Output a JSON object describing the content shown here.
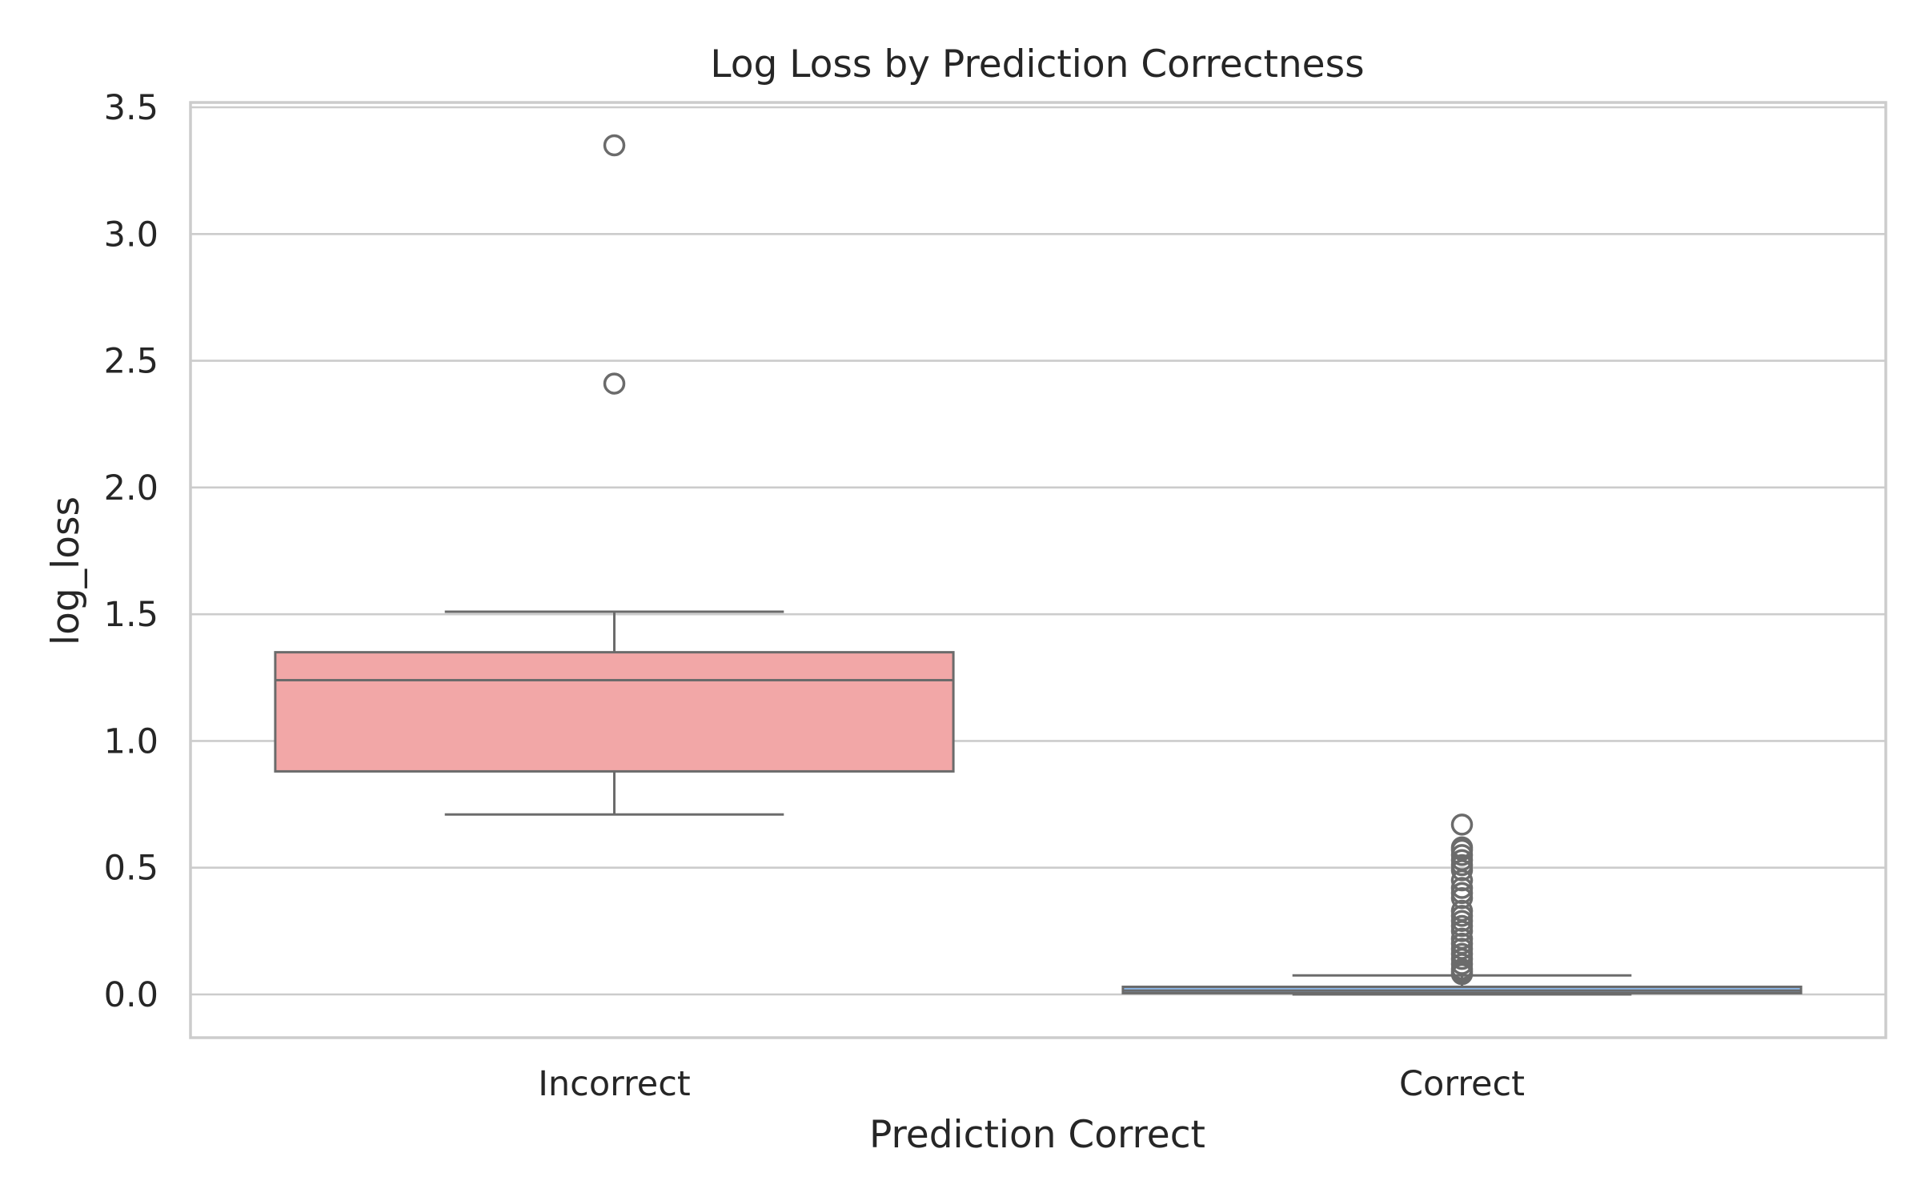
{
  "chart_data": {
    "type": "box",
    "title": "Log Loss by Prediction Correctness",
    "xlabel": "Prediction Correct",
    "ylabel": "log_loss",
    "categories": [
      "Incorrect",
      "Correct"
    ],
    "ylim": [
      -0.17,
      3.52
    ],
    "yticks": [
      0.0,
      0.5,
      1.0,
      1.5,
      2.0,
      2.5,
      3.0,
      3.5
    ],
    "ytick_labels": [
      "0.0",
      "0.5",
      "1.0",
      "1.5",
      "2.0",
      "2.5",
      "3.0",
      "3.5"
    ],
    "grid": "horizontal",
    "boxes": [
      {
        "category": "Incorrect",
        "color": "#f2a7a7",
        "whisker_low": 0.71,
        "q1": 0.88,
        "median": 1.24,
        "q3": 1.35,
        "whisker_high": 1.51,
        "fliers": [
          2.41,
          3.35
        ]
      },
      {
        "category": "Correct",
        "color": "#8db9ea",
        "whisker_low": 0.0,
        "q1": 0.005,
        "median": 0.015,
        "q3": 0.03,
        "whisker_high": 0.075,
        "fliers": [
          0.08,
          0.09,
          0.1,
          0.12,
          0.14,
          0.16,
          0.18,
          0.2,
          0.22,
          0.25,
          0.27,
          0.29,
          0.31,
          0.33,
          0.38,
          0.4,
          0.42,
          0.45,
          0.49,
          0.51,
          0.53,
          0.55,
          0.57,
          0.58,
          0.67
        ]
      }
    ]
  }
}
